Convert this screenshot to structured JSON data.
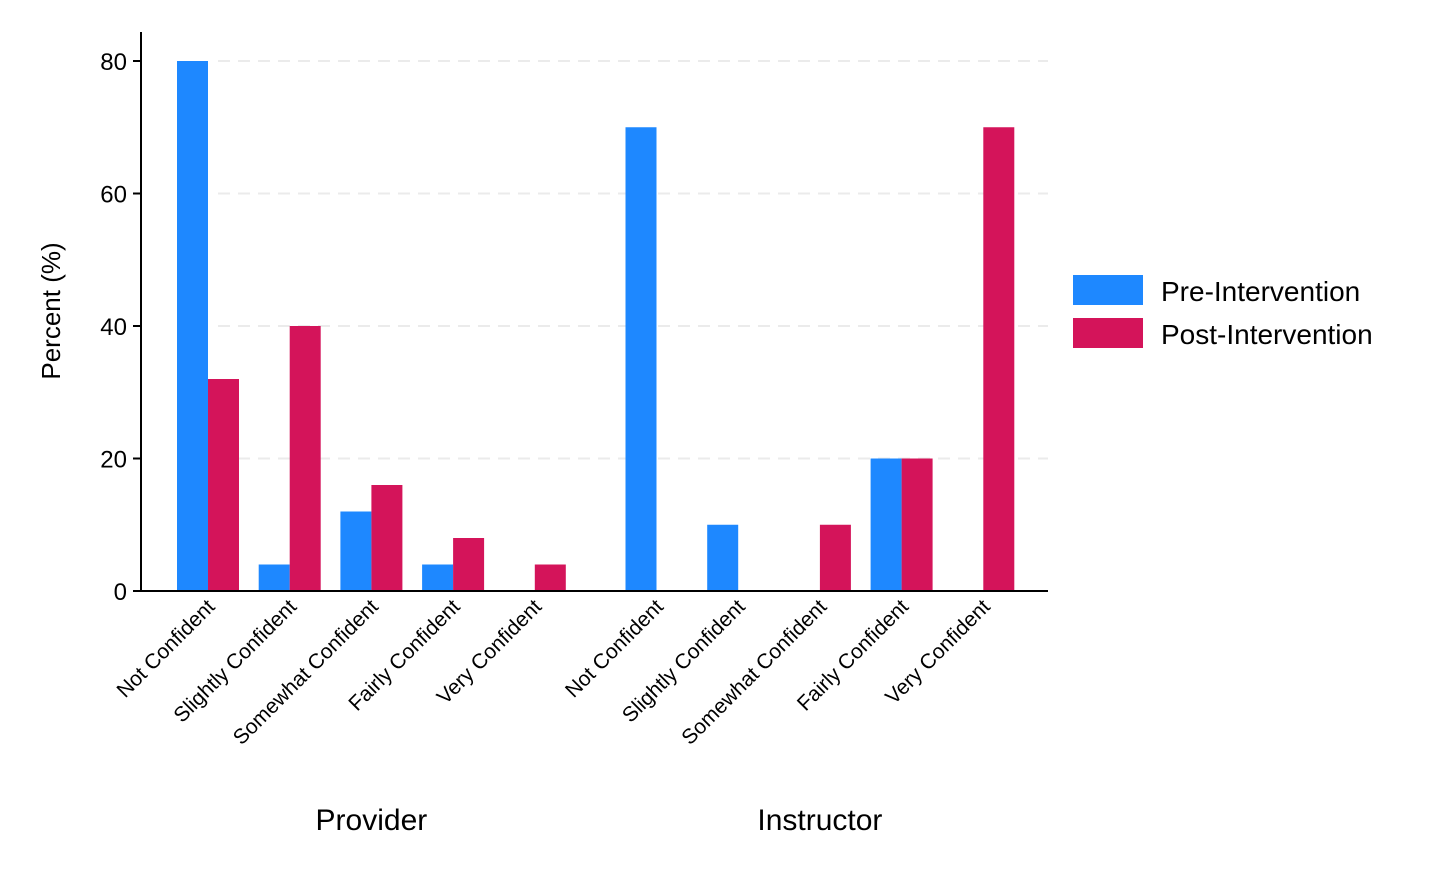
{
  "chart_data": {
    "type": "bar",
    "ylabel": "Percent (%)",
    "ylim": [
      0,
      84
    ],
    "yticks": [
      0,
      20,
      40,
      60,
      80
    ],
    "grid": true,
    "legend_position": "right",
    "groups": [
      {
        "name": "Provider",
        "categories": [
          "Not Confident",
          "Slightly Confident",
          "Somewhat Confident",
          "Fairly Confident",
          "Very Confident"
        ]
      },
      {
        "name": "Instructor",
        "categories": [
          "Not Confident",
          "Slightly Confident",
          "Somewhat Confident",
          "Fairly Confident",
          "Very Confident"
        ]
      }
    ],
    "series": [
      {
        "name": "Pre-Intervention",
        "color": "#1e88ff",
        "values": [
          [
            80,
            4,
            12,
            4,
            0
          ],
          [
            70,
            10,
            0,
            20,
            0
          ]
        ]
      },
      {
        "name": "Post-Intervention",
        "color": "#d4145a",
        "values": [
          [
            32,
            40,
            16,
            8,
            4
          ],
          [
            0,
            0,
            10,
            20,
            70
          ]
        ]
      }
    ]
  }
}
